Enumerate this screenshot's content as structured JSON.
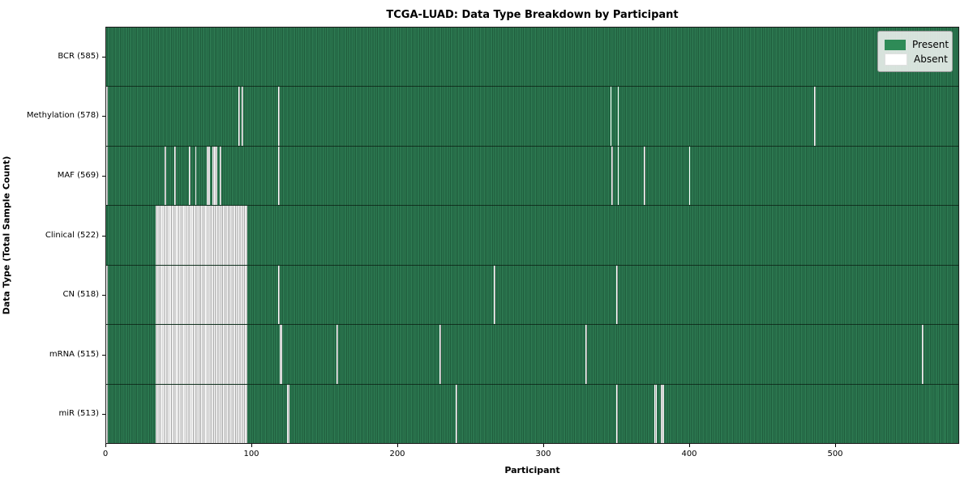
{
  "chart_data": {
    "type": "heatmap",
    "title": "TCGA-LUAD: Data Type Breakdown by Participant",
    "xlabel": "Participant",
    "ylabel": "Data Type (Total Sample Count)",
    "x_range": [
      0,
      585
    ],
    "x_ticks": [
      0,
      100,
      200,
      300,
      400,
      500
    ],
    "participants_total": 585,
    "grid": false,
    "legend_position": "upper right",
    "legend": [
      {
        "label": "Present",
        "color": "#2e8b57"
      },
      {
        "label": "Absent",
        "color": "#ffffff"
      }
    ],
    "rows": [
      {
        "label": "BCR (585)",
        "data_type": "BCR",
        "present_count": 585,
        "absent": []
      },
      {
        "label": "Methylation (578)",
        "data_type": "Methylation",
        "present_count": 578,
        "absent": [
          0,
          91,
          93,
          118,
          346,
          351,
          486
        ]
      },
      {
        "label": "MAF (569)",
        "data_type": "MAF",
        "present_count": 569,
        "absent": [
          0,
          40,
          47,
          57,
          61,
          69,
          70,
          73,
          74,
          75,
          78,
          118,
          347,
          351,
          369,
          400
        ]
      },
      {
        "label": "Clinical (522)",
        "data_type": "Clinical",
        "present_count": 522,
        "absent": [
          [
            34,
            96
          ]
        ]
      },
      {
        "label": "CN (518)",
        "data_type": "CN",
        "present_count": 518,
        "absent": [
          0,
          [
            34,
            96
          ],
          118,
          266,
          350
        ]
      },
      {
        "label": "mRNA (515)",
        "data_type": "mRNA",
        "present_count": 515,
        "absent": [
          0,
          [
            34,
            96
          ],
          119,
          120,
          158,
          229,
          329,
          560
        ]
      },
      {
        "label": "miR (513)",
        "data_type": "miR",
        "present_count": 513,
        "absent": [
          0,
          [
            34,
            96
          ],
          124,
          125,
          240,
          350,
          376,
          377,
          381,
          382
        ]
      }
    ]
  },
  "colors": {
    "present_fill": "#2e8b57",
    "present_edge": "#1e5a3b",
    "absent_fill": "#ffffff",
    "absent_edge": "#a3a3a3",
    "legend_background": "#f0f2f0"
  }
}
